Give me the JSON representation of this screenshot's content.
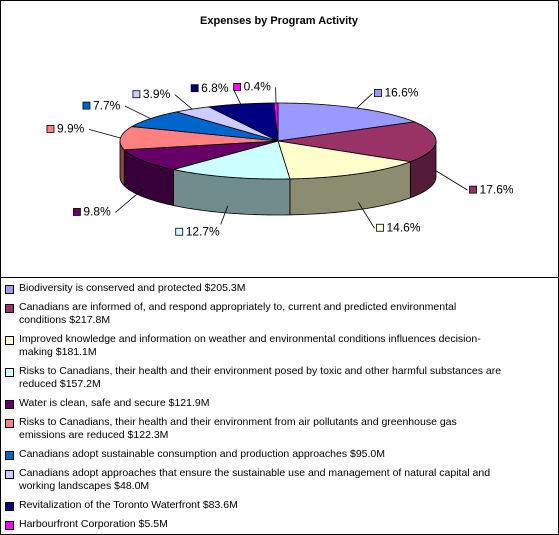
{
  "chart_data": {
    "type": "pie3d",
    "title": "Expenses by Program Activity",
    "categories": [
      "Biodiversity is conserved and protected $205.3M",
      "Canadians are informed of, and respond appropriately to, current and predicted environmental conditions $217.8M",
      "Improved knowledge and information on weather and environmental conditions influences decision-making $181.1M",
      "Risks to Canadians, their health and their environment posed by toxic and other harmful substances are reduced $157.2M",
      "Water is clean, safe and secure $121.9M",
      "Risks to Canadians, their health and their environment from air pollutants and greenhouse gas emissions are reduced $122.3M",
      "Canadians adopt sustainable consumption and production approaches $95.0M",
      "Canadians adopt approaches that ensure the sustainable use and management of natural capital and working landscapes $48.0M",
      "Revitalization of the Toronto Waterfront $83.6M",
      "Harbourfront Corporation $5.5M"
    ],
    "values": [
      16.6,
      17.6,
      14.6,
      12.7,
      9.8,
      9.9,
      7.7,
      3.9,
      6.8,
      0.4
    ],
    "value_labels": [
      "16.6%",
      "17.6%",
      "14.6%",
      "12.7%",
      "9.8%",
      "9.9%",
      "7.7%",
      "3.9%",
      "6.8%",
      "0.4%"
    ],
    "colors": [
      "#9999ff",
      "#993366",
      "#ffffcc",
      "#ccffff",
      "#660066",
      "#ff8080",
      "#0066cc",
      "#ccccff",
      "#000080",
      "#ff00ff"
    ]
  }
}
